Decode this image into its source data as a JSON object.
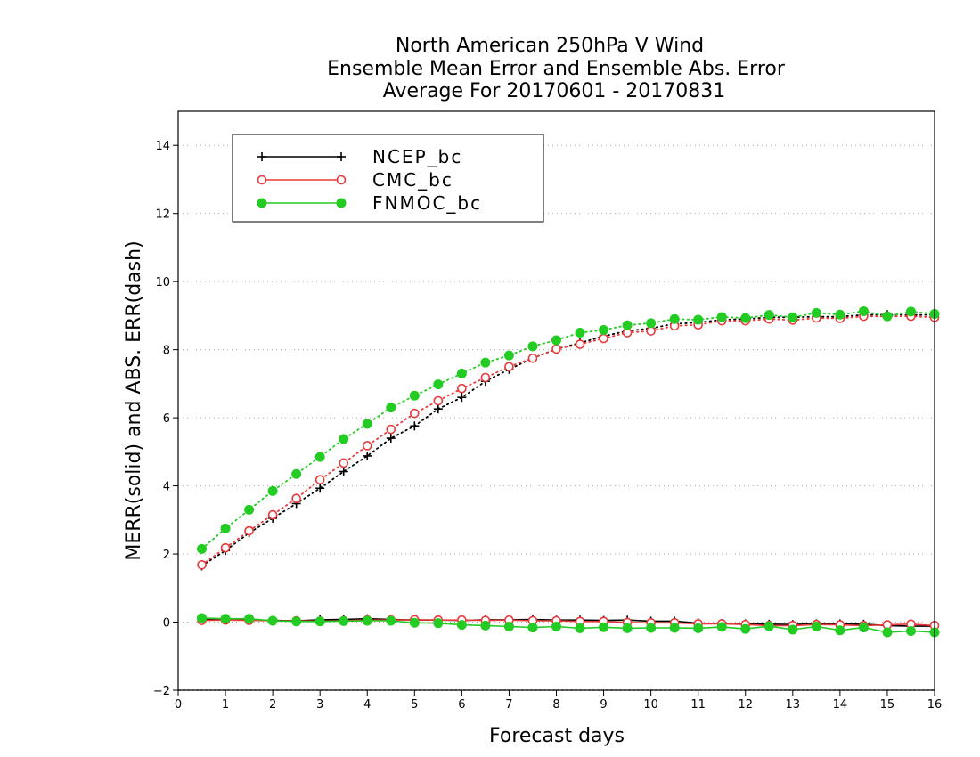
{
  "chart_data": {
    "type": "line",
    "title": [
      "North American 250hPa V Wind",
      "Ensemble Mean Error and Ensemble Abs. Error",
      "Average For 20170601 - 20170831"
    ],
    "xlabel": "Forecast days",
    "ylabel": "MERR(solid) and ABS. ERR(dash)",
    "xlim": [
      0,
      16
    ],
    "ylim": [
      -2,
      15
    ],
    "xticks": [
      "0",
      "1",
      "2",
      "3",
      "4",
      "5",
      "6",
      "7",
      "8",
      "9",
      "10",
      "11",
      "12",
      "13",
      "14",
      "15",
      "16"
    ],
    "yticks": [
      "−2",
      "0",
      "2",
      "4",
      "6",
      "8",
      "10",
      "12",
      "14"
    ],
    "ytick_values": [
      -2,
      0,
      2,
      4,
      6,
      8,
      10,
      12,
      14
    ],
    "grid": "horizontal dotted",
    "legend_position": "top-left",
    "x": [
      0.5,
      1,
      1.5,
      2,
      2.5,
      3,
      3.5,
      4,
      4.5,
      5,
      5.5,
      6,
      6.5,
      7,
      7.5,
      8,
      8.5,
      9,
      9.5,
      10,
      10.5,
      11,
      11.5,
      12,
      12.5,
      13,
      13.5,
      14,
      14.5,
      15,
      15.5,
      16
    ],
    "series": [
      {
        "name": "NCEP_bc",
        "color": "#000000",
        "marker": "plus",
        "merr": [
          0.08,
          0.08,
          0.07,
          0.05,
          0.04,
          0.07,
          0.08,
          0.1,
          0.08,
          0.06,
          0.06,
          0.05,
          0.07,
          0.07,
          0.08,
          0.06,
          0.06,
          0.05,
          0.06,
          0.03,
          0.03,
          -0.03,
          -0.04,
          -0.05,
          -0.06,
          -0.07,
          -0.05,
          -0.05,
          -0.06,
          -0.1,
          -0.12,
          -0.12
        ],
        "abs_err": [
          1.65,
          2.1,
          2.62,
          3.05,
          3.48,
          3.93,
          4.42,
          4.88,
          5.4,
          5.76,
          6.26,
          6.6,
          7.07,
          7.42,
          7.75,
          8.02,
          8.2,
          8.4,
          8.55,
          8.63,
          8.76,
          8.8,
          8.88,
          8.9,
          8.95,
          8.95,
          8.97,
          8.97,
          9.02,
          9.03,
          9.02,
          9.02
        ]
      },
      {
        "name": "CMC_bc",
        "color": "#e83a3a",
        "marker": "open-circle",
        "merr": [
          0.05,
          0.06,
          0.05,
          0.04,
          0.04,
          0.03,
          0.04,
          0.06,
          0.06,
          0.07,
          0.06,
          0.06,
          0.05,
          0.06,
          0.04,
          0.04,
          0.02,
          0.02,
          -0.01,
          -0.02,
          -0.02,
          -0.05,
          -0.05,
          -0.07,
          -0.1,
          -0.1,
          -0.07,
          -0.08,
          -0.1,
          -0.08,
          -0.06,
          -0.1
        ],
        "abs_err": [
          1.68,
          2.18,
          2.68,
          3.15,
          3.63,
          4.18,
          4.67,
          5.18,
          5.66,
          6.13,
          6.5,
          6.86,
          7.18,
          7.5,
          7.75,
          8.02,
          8.16,
          8.33,
          8.5,
          8.55,
          8.7,
          8.73,
          8.85,
          8.85,
          8.9,
          8.87,
          8.93,
          8.92,
          8.98,
          8.98,
          8.98,
          8.95
        ]
      },
      {
        "name": "FNMOC_bc",
        "color": "#22cc22",
        "marker": "filled-circle",
        "merr": [
          0.12,
          0.1,
          0.1,
          0.04,
          0.02,
          0.02,
          0.03,
          0.04,
          0.04,
          -0.02,
          -0.03,
          -0.08,
          -0.1,
          -0.13,
          -0.16,
          -0.13,
          -0.18,
          -0.15,
          -0.18,
          -0.17,
          -0.17,
          -0.18,
          -0.14,
          -0.2,
          -0.12,
          -0.22,
          -0.13,
          -0.24,
          -0.16,
          -0.3,
          -0.26,
          -0.3
        ],
        "abs_err": [
          2.15,
          2.75,
          3.3,
          3.85,
          4.35,
          4.85,
          5.38,
          5.82,
          6.3,
          6.65,
          6.98,
          7.3,
          7.62,
          7.83,
          8.1,
          8.28,
          8.5,
          8.58,
          8.72,
          8.78,
          8.9,
          8.88,
          8.96,
          8.93,
          9.02,
          8.95,
          9.08,
          9.03,
          9.13,
          8.98,
          9.12,
          9.05
        ]
      }
    ]
  }
}
